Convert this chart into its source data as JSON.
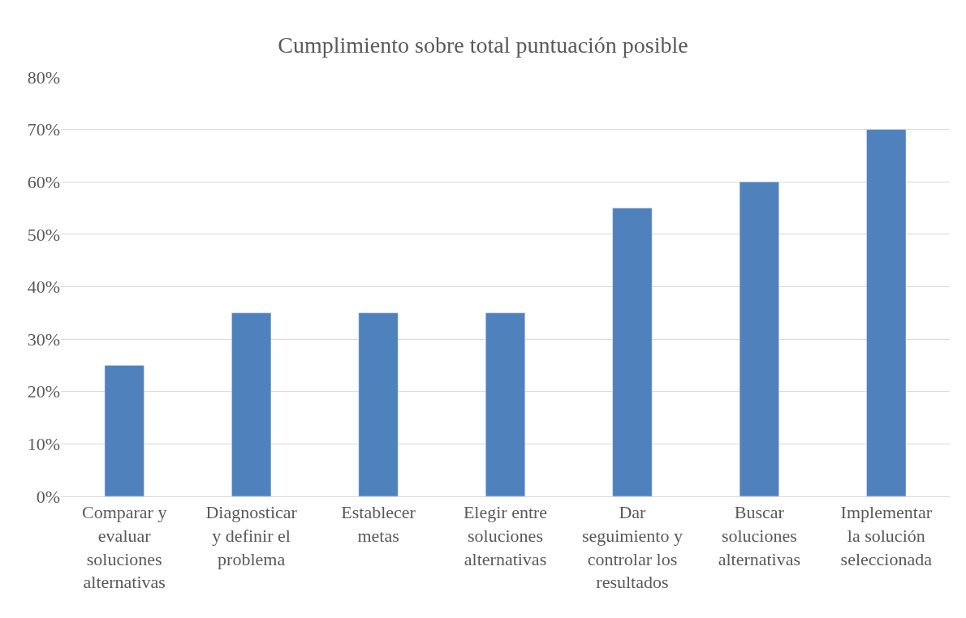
{
  "chart_data": {
    "type": "bar",
    "title": "Cumplimiento sobre total puntuación posible",
    "categories": [
      "Comparar y evaluar soluciones alternativas",
      "Diagnosticar y definir el problema",
      "Establecer metas",
      "Elegir entre soluciones alternativas",
      "Dar seguimiento y controlar los resultados",
      "Buscar soluciones alternativas",
      "Implementar la solución seleccionada"
    ],
    "values": [
      25,
      35,
      35,
      35,
      55,
      60,
      70
    ],
    "color": "#4f81bd",
    "ylim": [
      0,
      80
    ],
    "yticks": [
      {
        "value": 0,
        "label": "0%"
      },
      {
        "value": 10,
        "label": "10%"
      },
      {
        "value": 20,
        "label": "20%"
      },
      {
        "value": 30,
        "label": "30%"
      },
      {
        "value": 40,
        "label": "40%"
      },
      {
        "value": 50,
        "label": "50%"
      },
      {
        "value": 60,
        "label": "60%"
      },
      {
        "value": 70,
        "label": "70%"
      },
      {
        "value": 80,
        "label": "80%"
      }
    ],
    "grid": "y",
    "legend": false
  }
}
